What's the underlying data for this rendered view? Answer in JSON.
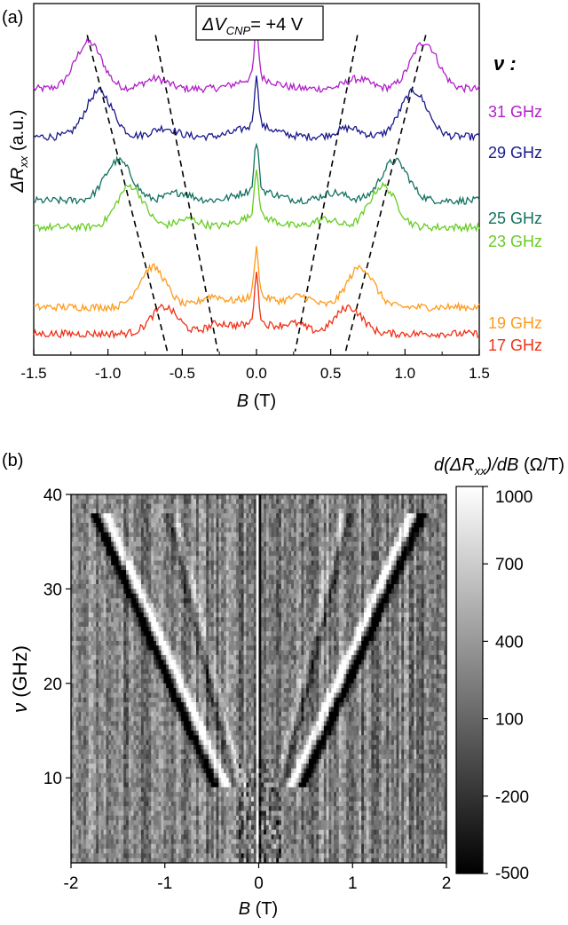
{
  "chart_data": [
    {
      "type": "line",
      "panel_label": "(a)",
      "annotation": "ΔV",
      "annotation_sub": "CNP",
      "annotation_value": "= +4 V",
      "ylabel_main": "ΔR",
      "ylabel_sub": "xx",
      "ylabel_unit": " (a.u.)",
      "xlabel_main": "B",
      "xlabel_unit": " (T)",
      "legend_title": "ν :",
      "xlim": [
        -1.5,
        1.5
      ],
      "x_ticks": [
        "-1.5",
        "-1.0",
        "-0.5",
        "0.0",
        "0.5",
        "1.0",
        "1.5"
      ],
      "series": [
        {
          "name": "31 GHz",
          "color": "#b020c8",
          "freq": 31,
          "baseline": 0.9,
          "peak_b": 1.13,
          "peak_h": 0.7,
          "side_b": 0.68,
          "side_h": 0.15
        },
        {
          "name": "29 GHz",
          "color": "#1a1a8c",
          "freq": 29,
          "baseline": 0.72,
          "peak_b": 1.06,
          "peak_h": 0.68,
          "side_b": 0.62,
          "side_h": 0.13
        },
        {
          "name": "25 GHz",
          "color": "#127060",
          "freq": 25,
          "baseline": 0.48,
          "peak_b": 0.93,
          "peak_h": 0.6,
          "side_b": 0.52,
          "side_h": 0.12
        },
        {
          "name": "23 GHz",
          "color": "#66cc22",
          "freq": 23,
          "baseline": 0.38,
          "peak_b": 0.85,
          "peak_h": 0.62,
          "side_b": 0.46,
          "side_h": 0.12
        },
        {
          "name": "19 GHz",
          "color": "#ff9a1a",
          "freq": 19,
          "baseline": 0.08,
          "peak_b": 0.7,
          "peak_h": 0.6,
          "side_b": 0.3,
          "side_h": 0.16
        },
        {
          "name": "17 GHz",
          "color": "#f03018",
          "freq": 17,
          "baseline": -0.02,
          "peak_b": 0.62,
          "peak_h": 0.4,
          "side_b": 0.26,
          "side_h": 0.14
        }
      ],
      "dashed_lines_B": [
        [
          [
            -1.14,
            31
          ],
          [
            -0.6,
            17
          ]
        ],
        [
          [
            -0.68,
            31
          ],
          [
            -0.26,
            17
          ]
        ],
        [
          [
            0.68,
            31
          ],
          [
            0.26,
            17
          ]
        ],
        [
          [
            1.14,
            31
          ],
          [
            0.6,
            17
          ]
        ]
      ]
    },
    {
      "type": "heatmap",
      "panel_label": "(b)",
      "xlabel_main": "B",
      "xlabel_unit": " (T)",
      "ylabel_main": "ν",
      "ylabel_unit": " (GHz)",
      "colorbar_label_main": "d(ΔR",
      "colorbar_label_sub": "xx",
      "colorbar_label_rest": ")/dB",
      "colorbar_unit": " (Ω/T)",
      "xlim": [
        -2,
        2
      ],
      "ylim": [
        1,
        40
      ],
      "x_ticks": [
        "-2",
        "-1",
        "0",
        "1",
        "2"
      ],
      "y_ticks": [
        {
          "v": 10,
          "label": "10"
        },
        {
          "v": 20,
          "label": "20"
        },
        {
          "v": 30,
          "label": "30"
        },
        {
          "v": 40,
          "label": "40"
        }
      ],
      "colorbar_range": [
        -500,
        1000
      ],
      "colorbar_ticks": [
        {
          "v": 1000,
          "label": "1000"
        },
        {
          "v": 700,
          "label": "700"
        },
        {
          "v": 400,
          "label": "400"
        },
        {
          "v": 100,
          "label": "100"
        },
        {
          "v": -200,
          "label": "-200"
        },
        {
          "v": -500,
          "label": "-500"
        }
      ],
      "resonance_lines": [
        {
          "slope_B_per_GHz": 0.0445,
          "polarity": "bright_outer"
        },
        {
          "slope_B_per_GHz": 0.0245,
          "polarity": "faint_inner"
        }
      ]
    }
  ]
}
